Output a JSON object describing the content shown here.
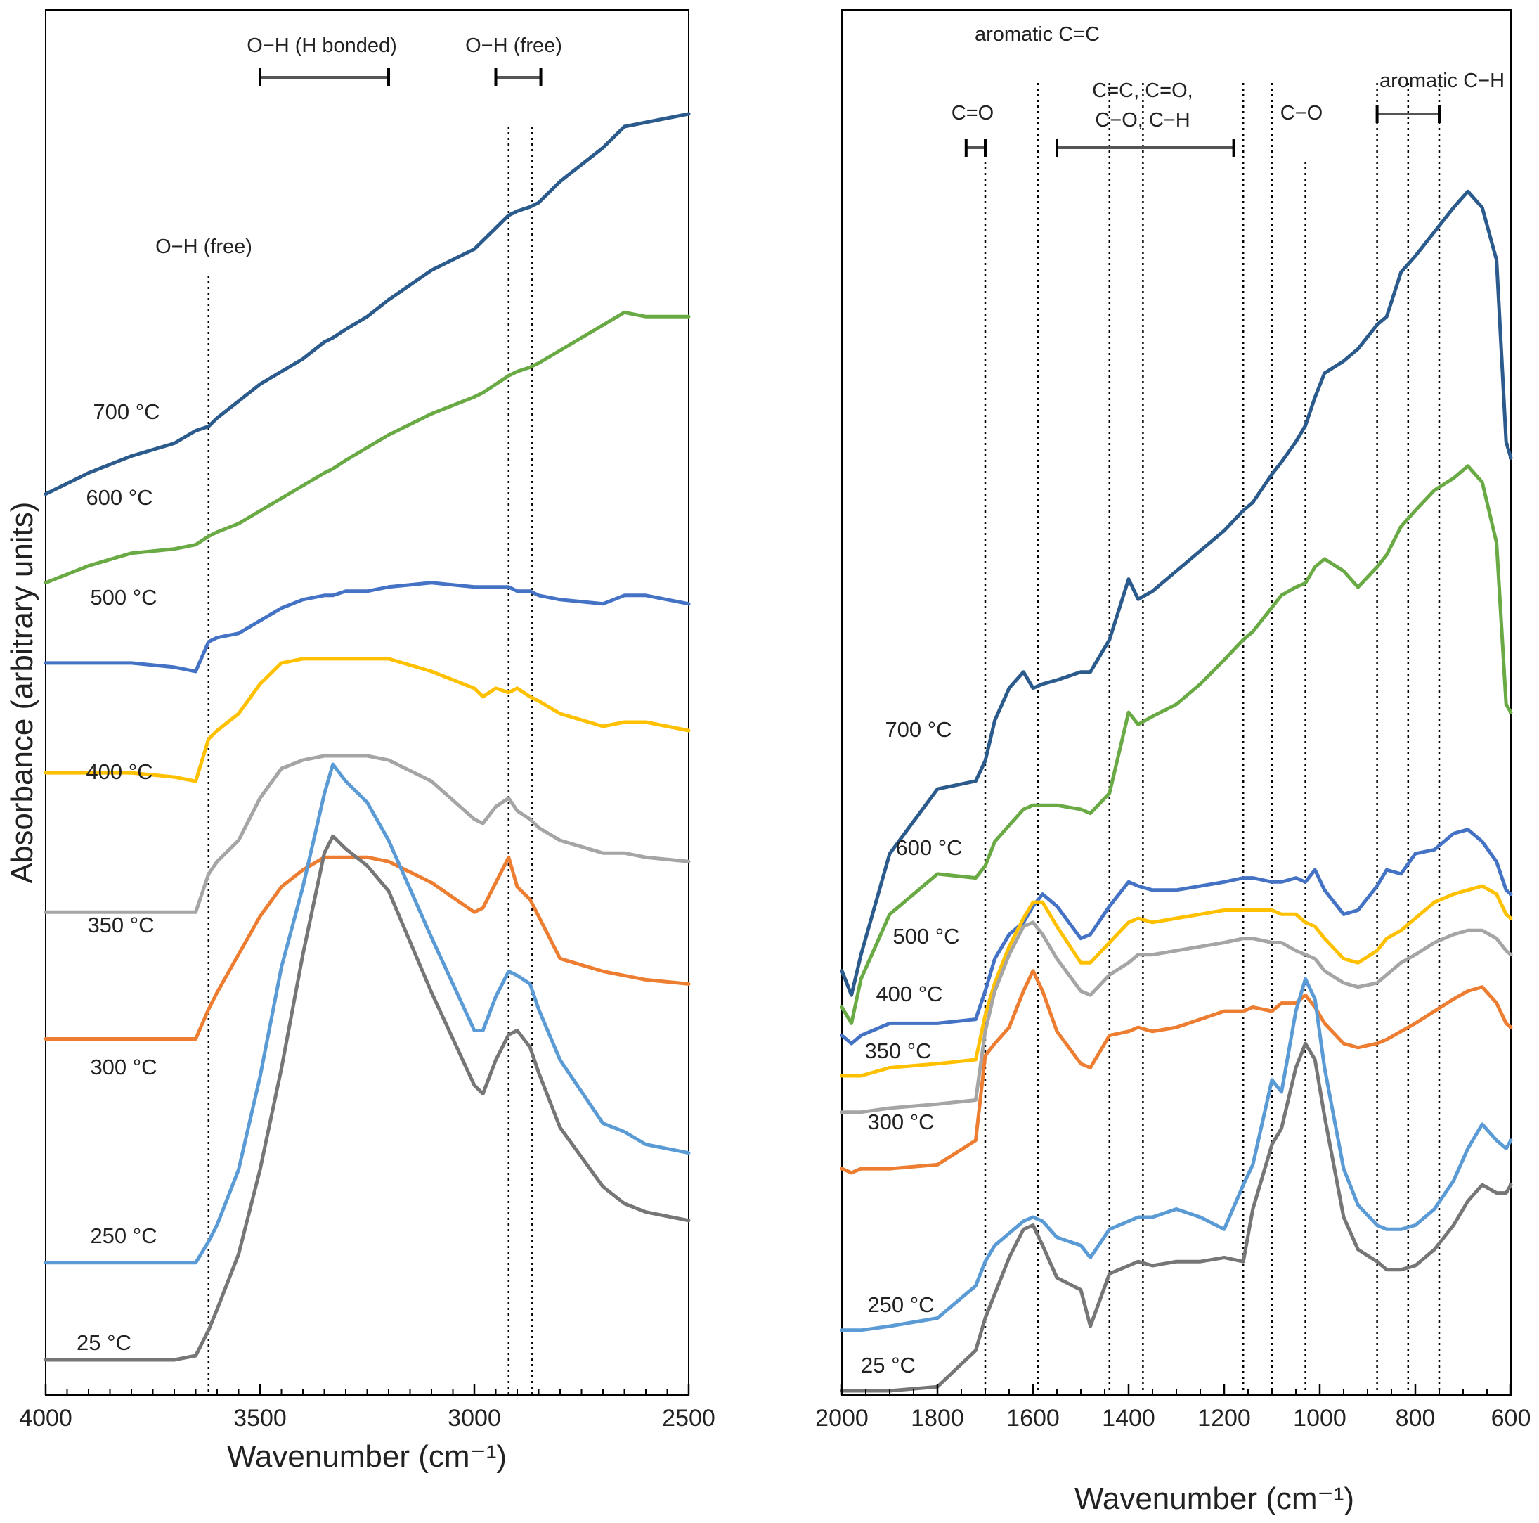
{
  "y_axis_title": "Absorbance (arbitrary units)",
  "chart_data": [
    {
      "type": "line",
      "panel": "left",
      "title": "",
      "xlabel": "Wavenumber (cm⁻¹)",
      "xlim": [
        4000,
        2500
      ],
      "x_reversed": true,
      "ylim": [
        0,
        30
      ],
      "grid": false,
      "x_ticks": [
        4000,
        3500,
        3000,
        2500
      ],
      "x": [
        4000,
        3900,
        3800,
        3700,
        3650,
        3620,
        3600,
        3550,
        3500,
        3450,
        3400,
        3350,
        3330,
        3300,
        3250,
        3200,
        3100,
        3000,
        2980,
        2950,
        2920,
        2900,
        2870,
        2850,
        2800,
        2700,
        2650,
        2600,
        2500
      ],
      "series": [
        {
          "name": "700 °C",
          "label": "700 °C",
          "color": "#2b5a8c",
          "values": [
            20.8,
            21.3,
            21.7,
            22.0,
            22.3,
            22.4,
            22.6,
            23.0,
            23.4,
            23.7,
            24.0,
            24.4,
            24.5,
            24.7,
            25.0,
            25.4,
            26.1,
            26.6,
            26.8,
            27.1,
            27.4,
            27.5,
            27.6,
            27.7,
            28.2,
            29.0,
            29.5,
            29.6,
            29.8
          ]
        },
        {
          "name": "600 °C",
          "label": "600 °C",
          "color": "#6aaa45",
          "values": [
            18.7,
            19.1,
            19.4,
            19.5,
            19.6,
            19.8,
            19.9,
            20.1,
            20.4,
            20.7,
            21.0,
            21.3,
            21.4,
            21.6,
            21.9,
            22.2,
            22.7,
            23.1,
            23.2,
            23.4,
            23.6,
            23.7,
            23.8,
            23.9,
            24.2,
            24.8,
            25.1,
            25.0,
            25.0
          ]
        },
        {
          "name": "500 °C",
          "label": "500 °C",
          "color": "#4472c4",
          "values": [
            16.8,
            16.8,
            16.8,
            16.7,
            16.6,
            17.3,
            17.4,
            17.5,
            17.8,
            18.1,
            18.3,
            18.4,
            18.4,
            18.5,
            18.5,
            18.6,
            18.7,
            18.6,
            18.6,
            18.6,
            18.6,
            18.5,
            18.5,
            18.4,
            18.3,
            18.2,
            18.4,
            18.4,
            18.2
          ]
        },
        {
          "name": "400 °C",
          "label": "400 °C",
          "color": "#ffc000",
          "values": [
            14.2,
            14.2,
            14.2,
            14.1,
            14.0,
            15.0,
            15.2,
            15.6,
            16.3,
            16.8,
            16.9,
            16.9,
            16.9,
            16.9,
            16.9,
            16.9,
            16.6,
            16.2,
            16.0,
            16.2,
            16.1,
            16.2,
            16.0,
            15.9,
            15.6,
            15.3,
            15.4,
            15.4,
            15.2
          ]
        },
        {
          "name": "350 °C",
          "label": "350 °C",
          "color": "#a5a5a5",
          "values": [
            10.9,
            10.9,
            10.9,
            10.9,
            10.9,
            11.8,
            12.1,
            12.6,
            13.6,
            14.3,
            14.5,
            14.6,
            14.6,
            14.6,
            14.6,
            14.5,
            14.0,
            13.1,
            13.0,
            13.4,
            13.6,
            13.3,
            13.1,
            12.9,
            12.6,
            12.3,
            12.3,
            12.2,
            12.1
          ]
        },
        {
          "name": "300 °C",
          "label": "300 °C",
          "color": "#ed7d31",
          "values": [
            7.9,
            7.9,
            7.9,
            7.9,
            7.9,
            8.6,
            9.0,
            9.9,
            10.8,
            11.5,
            11.9,
            12.2,
            12.2,
            12.2,
            12.2,
            12.1,
            11.6,
            10.9,
            11.0,
            11.6,
            12.2,
            11.5,
            11.2,
            10.8,
            9.8,
            9.5,
            9.4,
            9.3,
            9.2
          ]
        },
        {
          "name": "250 °C",
          "label": "250 °C",
          "color": "#5b9bd5",
          "values": [
            2.6,
            2.6,
            2.6,
            2.6,
            2.6,
            3.1,
            3.5,
            4.8,
            7.0,
            9.6,
            11.5,
            13.7,
            14.4,
            14.0,
            13.5,
            12.6,
            10.3,
            8.1,
            8.1,
            8.9,
            9.5,
            9.4,
            9.2,
            8.6,
            7.4,
            5.9,
            5.7,
            5.4,
            5.2
          ]
        },
        {
          "name": "25 °C",
          "label": "25 °C",
          "color": "#767676",
          "values": [
            0.3,
            0.3,
            0.3,
            0.3,
            0.4,
            1.0,
            1.5,
            2.8,
            4.8,
            7.2,
            9.9,
            12.3,
            12.7,
            12.4,
            12.0,
            11.4,
            9.0,
            6.8,
            6.6,
            7.4,
            8.0,
            8.1,
            7.7,
            7.1,
            5.8,
            4.4,
            4.0,
            3.8,
            3.6
          ]
        }
      ],
      "reference_lines": [
        3620,
        2920,
        2865
      ],
      "annotations": [
        {
          "text": "O−H (H bonded)",
          "range": [
            3500,
            3200
          ]
        },
        {
          "text": "O−H (free)",
          "range": [
            2950,
            2845
          ]
        },
        {
          "text": "O−H (free)",
          "at": 3620
        }
      ]
    },
    {
      "type": "line",
      "panel": "right",
      "title": "",
      "xlabel": "Wavenumber (cm⁻¹)",
      "xlim": [
        2000,
        600
      ],
      "x_reversed": true,
      "ylim": [
        0,
        30
      ],
      "grid": false,
      "x_ticks": [
        2000,
        1800,
        1600,
        1400,
        1200,
        1000,
        800,
        600
      ],
      "x": [
        2000,
        1980,
        1960,
        1900,
        1800,
        1720,
        1700,
        1680,
        1650,
        1620,
        1600,
        1580,
        1550,
        1500,
        1480,
        1440,
        1400,
        1380,
        1350,
        1300,
        1250,
        1200,
        1160,
        1140,
        1100,
        1080,
        1050,
        1030,
        1010,
        990,
        950,
        920,
        880,
        860,
        830,
        800,
        760,
        720,
        690,
        660,
        630,
        610,
        600
      ],
      "series": [
        {
          "name": "700 °C",
          "label": "700 °C",
          "color": "#2b5a8c",
          "values": [
            10.4,
            9.8,
            10.8,
            13.3,
            14.9,
            15.1,
            15.6,
            16.6,
            17.4,
            17.8,
            17.4,
            17.5,
            17.6,
            17.8,
            17.8,
            18.6,
            20.1,
            19.6,
            19.8,
            20.3,
            20.8,
            21.3,
            21.8,
            22.0,
            22.7,
            23.0,
            23.5,
            23.9,
            24.6,
            25.2,
            25.5,
            25.8,
            26.4,
            26.6,
            27.7,
            28.1,
            28.7,
            29.3,
            29.7,
            29.3,
            28.0,
            23.5,
            23.1
          ]
        },
        {
          "name": "600 °C",
          "label": "600 °C",
          "color": "#6aaa45",
          "values": [
            9.5,
            9.1,
            10.2,
            11.8,
            12.8,
            12.7,
            13.0,
            13.6,
            14.0,
            14.4,
            14.5,
            14.5,
            14.5,
            14.4,
            14.3,
            14.8,
            16.8,
            16.5,
            16.7,
            17.0,
            17.5,
            18.1,
            18.6,
            18.8,
            19.4,
            19.7,
            19.9,
            20.0,
            20.4,
            20.6,
            20.3,
            19.9,
            20.4,
            20.7,
            21.4,
            21.8,
            22.3,
            22.6,
            22.9,
            22.5,
            21.0,
            17.0,
            16.8
          ]
        },
        {
          "name": "500 °C",
          "label": "500 °C",
          "color": "#4472c4",
          "values": [
            8.8,
            8.6,
            8.8,
            9.1,
            9.1,
            9.2,
            9.9,
            10.7,
            11.3,
            11.6,
            12.0,
            12.3,
            12.0,
            11.2,
            11.3,
            12.0,
            12.6,
            12.5,
            12.4,
            12.4,
            12.5,
            12.6,
            12.7,
            12.7,
            12.6,
            12.6,
            12.7,
            12.6,
            12.9,
            12.4,
            11.8,
            11.9,
            12.5,
            12.9,
            12.8,
            13.3,
            13.4,
            13.8,
            13.9,
            13.6,
            13.1,
            12.4,
            12.3
          ]
        },
        {
          "name": "400 °C",
          "label": "400 °C",
          "color": "#ffc000",
          "values": [
            7.8,
            7.8,
            7.8,
            8.0,
            8.1,
            8.2,
            9.3,
            10.1,
            11.0,
            11.7,
            12.1,
            12.1,
            11.5,
            10.6,
            10.6,
            11.1,
            11.6,
            11.7,
            11.6,
            11.7,
            11.8,
            11.9,
            11.9,
            11.9,
            11.9,
            11.8,
            11.8,
            11.6,
            11.5,
            11.2,
            10.7,
            10.6,
            10.9,
            11.2,
            11.4,
            11.7,
            12.1,
            12.3,
            12.4,
            12.5,
            12.3,
            11.8,
            11.7
          ]
        },
        {
          "name": "350 °C",
          "label": "350 °C",
          "color": "#a5a5a5",
          "values": [
            6.9,
            6.9,
            6.9,
            7.0,
            7.1,
            7.2,
            8.9,
            9.9,
            10.8,
            11.5,
            11.6,
            11.3,
            10.7,
            9.9,
            9.8,
            10.3,
            10.6,
            10.8,
            10.8,
            10.9,
            11.0,
            11.1,
            11.2,
            11.2,
            11.1,
            11.1,
            10.9,
            10.8,
            10.7,
            10.4,
            10.1,
            10.0,
            10.1,
            10.3,
            10.6,
            10.8,
            11.1,
            11.3,
            11.4,
            11.4,
            11.2,
            10.9,
            10.8
          ]
        },
        {
          "name": "300 °C",
          "label": "300 °C",
          "color": "#ed7d31",
          "values": [
            5.5,
            5.4,
            5.5,
            5.5,
            5.6,
            6.2,
            8.3,
            8.6,
            9.0,
            9.9,
            10.4,
            9.9,
            8.9,
            8.1,
            8.0,
            8.8,
            8.9,
            9.0,
            8.9,
            9.0,
            9.2,
            9.4,
            9.4,
            9.5,
            9.4,
            9.6,
            9.6,
            9.8,
            9.5,
            9.1,
            8.6,
            8.5,
            8.6,
            8.7,
            8.9,
            9.1,
            9.4,
            9.7,
            9.9,
            10.0,
            9.6,
            9.1,
            9.0
          ]
        },
        {
          "name": "250 °C",
          "label": "250 °C",
          "color": "#5b9bd5",
          "values": [
            1.5,
            1.5,
            1.5,
            1.6,
            1.8,
            2.6,
            3.2,
            3.6,
            3.9,
            4.2,
            4.3,
            4.2,
            3.8,
            3.6,
            3.3,
            4.0,
            4.2,
            4.3,
            4.3,
            4.5,
            4.3,
            4.0,
            5.1,
            5.6,
            7.7,
            7.4,
            9.4,
            10.2,
            9.7,
            8.0,
            5.5,
            4.6,
            4.1,
            4.0,
            4.0,
            4.1,
            4.5,
            5.2,
            6.0,
            6.6,
            6.2,
            6.0,
            6.2
          ]
        },
        {
          "name": "25 °C",
          "label": "25 °C",
          "color": "#767676",
          "values": [
            0.0,
            0.0,
            0.0,
            0.0,
            0.1,
            1.0,
            1.8,
            2.4,
            3.3,
            4.0,
            4.1,
            3.6,
            2.8,
            2.5,
            1.6,
            2.9,
            3.1,
            3.2,
            3.1,
            3.2,
            3.2,
            3.3,
            3.2,
            4.5,
            6.1,
            6.5,
            8.0,
            8.6,
            8.2,
            6.8,
            4.3,
            3.5,
            3.2,
            3.0,
            3.0,
            3.1,
            3.5,
            4.1,
            4.7,
            5.1,
            4.9,
            4.9,
            5.1
          ]
        }
      ],
      "reference_lines": [
        1700,
        1590,
        1440,
        1370,
        1160,
        1100,
        1030,
        880,
        815,
        750
      ],
      "annotations": [
        {
          "text": "aromatic C=C",
          "at": 1590
        },
        {
          "text": "C=O",
          "range": [
            1740,
            1700
          ]
        },
        {
          "text": "C=C, C=O,",
          "range": [
            1550,
            1180
          ]
        },
        {
          "text": "C−O, C−H",
          "range": [
            1550,
            1180
          ]
        },
        {
          "text": "C−O",
          "at": 1030
        },
        {
          "text": "aromatic C−H",
          "range": [
            880,
            750
          ]
        }
      ]
    }
  ]
}
